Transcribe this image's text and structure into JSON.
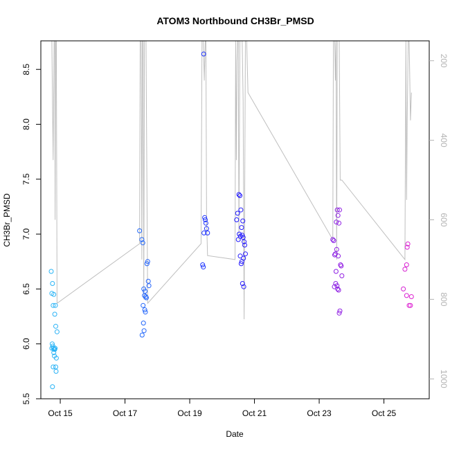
{
  "chart_data": {
    "type": "scatter",
    "title": "ATOM3 Northbound CH3Br_PMSD",
    "xlabel": "Date",
    "ylabel": "CH3Br_PMSD",
    "x_ticks": [
      {
        "label": "Oct 15",
        "value": 15
      },
      {
        "label": "Oct 17",
        "value": 17
      },
      {
        "label": "Oct 19",
        "value": 19
      },
      {
        "label": "Oct 21",
        "value": 21
      },
      {
        "label": "Oct 23",
        "value": 23
      },
      {
        "label": "Oct 25",
        "value": 25
      }
    ],
    "y_ticks": [
      "5.5",
      "6.0",
      "6.5",
      "7.0",
      "7.5",
      "8.0",
      "8.5"
    ],
    "y_right_ticks": [
      "200",
      "400",
      "600",
      "800",
      "1000"
    ],
    "xlim": [
      14.4,
      26.4
    ],
    "ylim": [
      5.5,
      8.76
    ],
    "y2lim": [
      1050,
      150
    ],
    "grid": false,
    "colors": {
      "line": "#bebebe",
      "right_axis": "#b3b3b3",
      "point_start": "#29b6f6",
      "point_mid": "#1a1aff",
      "point_end": "#e020d0"
    },
    "series": [
      {
        "kind": "points",
        "x": [
          14.72,
          14.76,
          14.74,
          14.8,
          14.78,
          14.75,
          14.83,
          14.85,
          14.86,
          14.9,
          14.79,
          14.81,
          14.84,
          14.77,
          14.8,
          14.82,
          14.88,
          14.87,
          14.86,
          14.83,
          14.76,
          14.78,
          14.74,
          17.45,
          17.52,
          17.55,
          17.58,
          17.62,
          17.6,
          17.64,
          17.66,
          17.68,
          17.7,
          17.72,
          17.74,
          17.56,
          17.57,
          17.53,
          17.59,
          17.61,
          17.63,
          19.4,
          19.42,
          19.44,
          19.46,
          19.48,
          19.5,
          19.52,
          19.55,
          19.43,
          20.45,
          20.48,
          20.52,
          20.55,
          20.58,
          20.6,
          20.62,
          20.65,
          20.68,
          20.7,
          20.72,
          20.56,
          20.61,
          20.66,
          20.64,
          20.63,
          20.67,
          20.5,
          20.53,
          20.57,
          20.59,
          23.42,
          23.45,
          23.48,
          23.5,
          23.52,
          23.55,
          23.57,
          23.6,
          23.62,
          23.64,
          23.66,
          23.68,
          23.7,
          23.53,
          23.56,
          23.58,
          23.61,
          23.47,
          23.51,
          23.54,
          23.59,
          23.63,
          25.6,
          25.65,
          25.7,
          25.72,
          25.74,
          25.78,
          25.82,
          25.85,
          25.7
        ],
        "y": [
          6.66,
          6.55,
          6.46,
          6.45,
          6.35,
          6.0,
          6.27,
          6.35,
          6.16,
          6.11,
          5.96,
          5.95,
          5.96,
          5.98,
          5.92,
          5.89,
          5.87,
          5.75,
          5.79,
          5.95,
          5.61,
          5.79,
          5.96,
          7.03,
          6.95,
          6.92,
          6.5,
          6.48,
          6.44,
          6.43,
          6.42,
          6.73,
          6.75,
          6.57,
          6.53,
          6.35,
          6.19,
          6.08,
          6.12,
          6.31,
          6.29,
          6.72,
          6.7,
          7.01,
          7.15,
          7.13,
          7.1,
          7.05,
          7.01,
          8.64,
          7.13,
          7.19,
          7.36,
          7.35,
          7.22,
          7.06,
          6.99,
          6.97,
          6.93,
          6.9,
          6.82,
          6.8,
          6.75,
          6.78,
          7.12,
          6.55,
          6.52,
          6.95,
          7.0,
          6.98,
          6.73,
          6.95,
          6.94,
          6.81,
          6.82,
          6.66,
          6.53,
          6.5,
          6.49,
          6.28,
          6.3,
          6.72,
          6.71,
          6.62,
          7.11,
          7.22,
          7.17,
          7.1,
          6.52,
          6.55,
          6.86,
          6.8,
          7.22,
          6.5,
          6.68,
          6.72,
          6.88,
          6.91,
          6.35,
          6.35,
          6.43,
          6.44
        ]
      },
      {
        "kind": "line",
        "right_axis": true,
        "x": [
          14.71,
          14.74,
          14.76,
          14.78,
          14.79,
          14.81,
          14.83,
          14.84,
          14.86,
          14.88,
          14.9,
          17.45,
          17.47,
          17.49,
          17.5,
          17.52,
          17.54,
          17.56,
          17.58,
          17.6,
          17.62,
          17.65,
          17.7,
          19.35,
          19.38,
          19.4,
          19.42,
          19.45,
          19.48,
          19.5,
          19.52,
          19.55,
          20.4,
          20.42,
          20.44,
          20.46,
          20.48,
          20.5,
          20.52,
          20.55,
          20.58,
          20.62,
          20.65,
          20.68,
          20.72,
          20.76,
          20.8,
          23.42,
          23.44,
          23.46,
          23.48,
          23.5,
          23.52,
          23.54,
          23.56,
          23.58,
          23.6,
          23.62,
          23.65,
          23.7,
          25.65,
          25.68,
          25.7,
          25.72,
          25.75,
          25.78,
          25.82,
          25.85
        ],
        "y": [
          150,
          150,
          300,
          450,
          350,
          150,
          150,
          600,
          150,
          150,
          810,
          660,
          150,
          150,
          150,
          700,
          150,
          150,
          800,
          150,
          150,
          150,
          810,
          660,
          150,
          150,
          150,
          250,
          150,
          150,
          600,
          690,
          700,
          150,
          450,
          200,
          150,
          150,
          650,
          150,
          150,
          150,
          300,
          850,
          150,
          150,
          280,
          650,
          150,
          150,
          150,
          250,
          150,
          700,
          150,
          150,
          150,
          150,
          500,
          500,
          700,
          150,
          550,
          350,
          150,
          150,
          350,
          280
        ]
      }
    ]
  }
}
